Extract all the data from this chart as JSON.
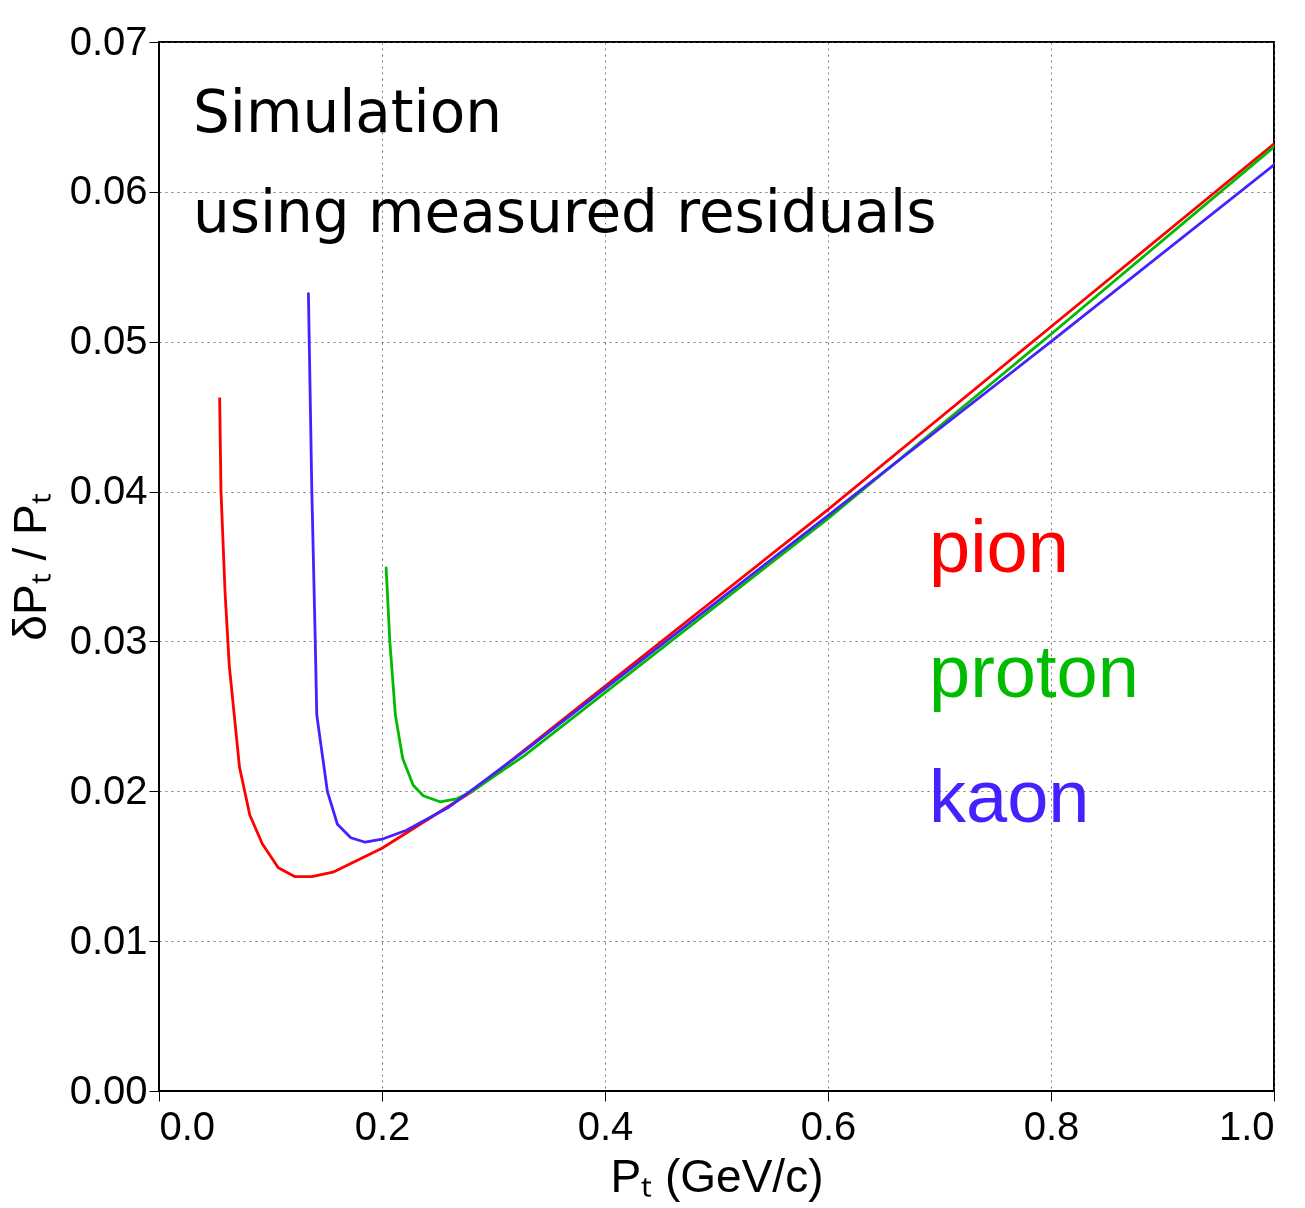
{
  "chart_data": {
    "type": "line",
    "xlabel": "Pₜ (GeV/c)",
    "ylabel": "δPₜ / Pₜ",
    "annotations": [
      "Simulation",
      "using measured residuals"
    ],
    "xlim": [
      0,
      1.0
    ],
    "xticks": [
      {
        "value": 0,
        "label": "0.0"
      },
      0.2,
      0.4,
      0.6,
      0.8,
      {
        "value": 1,
        "label": "1.0"
      }
    ],
    "ylim": [
      0,
      0.07
    ],
    "yticks": [
      {
        "value": 0,
        "label": "0.00"
      },
      0.01,
      0.02,
      0.03,
      0.04,
      0.05,
      0.06,
      0.07
    ],
    "grid": true,
    "marker": "none",
    "line_style": "solid",
    "series": [
      {
        "name": "pion",
        "color": "#ff0000",
        "x": [
          0.0544,
          0.0556,
          0.0593,
          0.063,
          0.0722,
          0.0815,
          0.0926,
          0.107,
          0.122,
          0.137,
          0.156,
          0.178,
          0.2,
          0.23,
          0.281,
          0.6,
          0.8,
          1.0
        ],
        "values": [
          0.0462,
          0.04,
          0.0332,
          0.0284,
          0.0216,
          0.0184,
          0.0165,
          0.0149,
          0.0143,
          0.0143,
          0.0146,
          0.0154,
          0.0162,
          0.0176,
          0.02,
          0.0388,
          0.051,
          0.0632
        ]
      },
      {
        "name": "proton",
        "color": "#00bb00",
        "x": [
          0.2037,
          0.207,
          0.212,
          0.2185,
          0.228,
          0.237,
          0.252,
          0.267,
          0.281,
          0.328,
          0.6,
          0.8,
          1.0
        ],
        "values": [
          0.0349,
          0.03,
          0.0251,
          0.0222,
          0.0204,
          0.0197,
          0.0193,
          0.0195,
          0.02,
          0.0224,
          0.0382,
          0.0505,
          0.063
        ]
      },
      {
        "name": "kaon",
        "color": "#4422ff",
        "x": [
          0.134,
          0.137,
          0.14,
          0.1415,
          0.151,
          0.16,
          0.172,
          0.185,
          0.2,
          0.222,
          0.259,
          0.328,
          0.6,
          0.8,
          1.0
        ],
        "values": [
          0.0532,
          0.0403,
          0.0305,
          0.0251,
          0.02,
          0.0178,
          0.0169,
          0.0166,
          0.0168,
          0.0174,
          0.0189,
          0.0227,
          0.0384,
          0.05,
          0.0618
        ]
      }
    ]
  }
}
